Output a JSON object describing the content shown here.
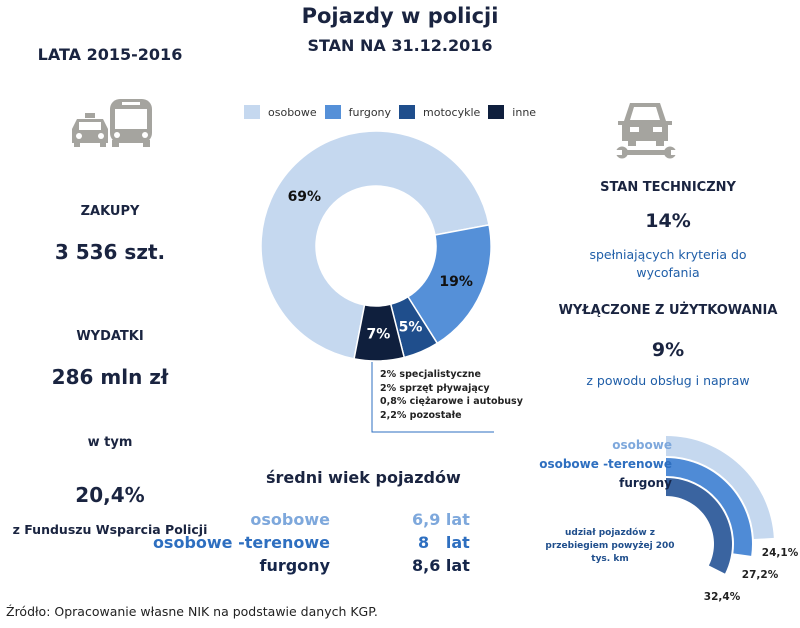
{
  "title": "Pojazdy w policji",
  "subtitle": "STAN NA 31.12.2016",
  "left": {
    "period": "LATA 2015-2016",
    "purchases_label": "ZAKUPY",
    "purchases_value": "3 536 szt.",
    "expenses_label": "WYDATKI",
    "expenses_value": "286 mln zł",
    "incl_label": "w tym",
    "incl_value": "20,4%",
    "incl_desc": "z Funduszu Wsparcia Policji"
  },
  "icons": {
    "left": "taxi-bus-icon",
    "right": "car-wrench-icon"
  },
  "right": {
    "tech_label": "STAN TECHNICZNY",
    "tech_value": "14%",
    "tech_desc1": "spełniających kryteria do",
    "tech_desc2": "wycofania",
    "excluded_label": "WYŁĄCZONE Z UŻYTKOWANIA",
    "excluded_value": "9%",
    "excluded_desc": "z powodu obsług i napraw"
  },
  "chart_data": [
    {
      "type": "pie",
      "variant": "donut",
      "categories": [
        "osobowe",
        "furgony",
        "motocykle",
        "inne"
      ],
      "values": [
        69,
        19,
        5,
        7
      ],
      "labels": [
        "69%",
        "19%",
        "5%",
        "7%"
      ],
      "colors": [
        "#c5d8ef",
        "#5590d8",
        "#1f4e8c",
        "#0f1f3d"
      ],
      "legend": "top",
      "annotation": [
        "2% specjalistyczne",
        "2% sprzęt pływający",
        "0,8% ciężarowe i autobusy",
        "2,2% pozostałe"
      ]
    },
    {
      "type": "table",
      "title": "średni wiek pojazdów",
      "rows": [
        {
          "label": "osobowe",
          "value": "6,9 lat",
          "color": "#7ea8dc"
        },
        {
          "label": "osobowe -terenowe",
          "value": "8   lat",
          "color": "#2e6fc0"
        },
        {
          "label": "furgony",
          "value": "8,6 lat",
          "color": "#16264a"
        }
      ]
    },
    {
      "type": "bar",
      "variant": "radial",
      "title": "udział pojazdów z przebiegiem powyżej 200 tys. km",
      "categories": [
        "osobowe",
        "osobowe -terenowe",
        "furgony"
      ],
      "values": [
        24.1,
        27.2,
        32.4
      ],
      "labels": [
        "24,1%",
        "27,2%",
        "32,4%"
      ],
      "colors": [
        "#c5d8ef",
        "#4f8bd6",
        "#3a64a0"
      ],
      "legend_colors": [
        "#7ea8dc",
        "#2e6fc0",
        "#16264a"
      ]
    }
  ],
  "source": "Źródło: Opracowanie  własne NIK na podstawie danych KGP."
}
